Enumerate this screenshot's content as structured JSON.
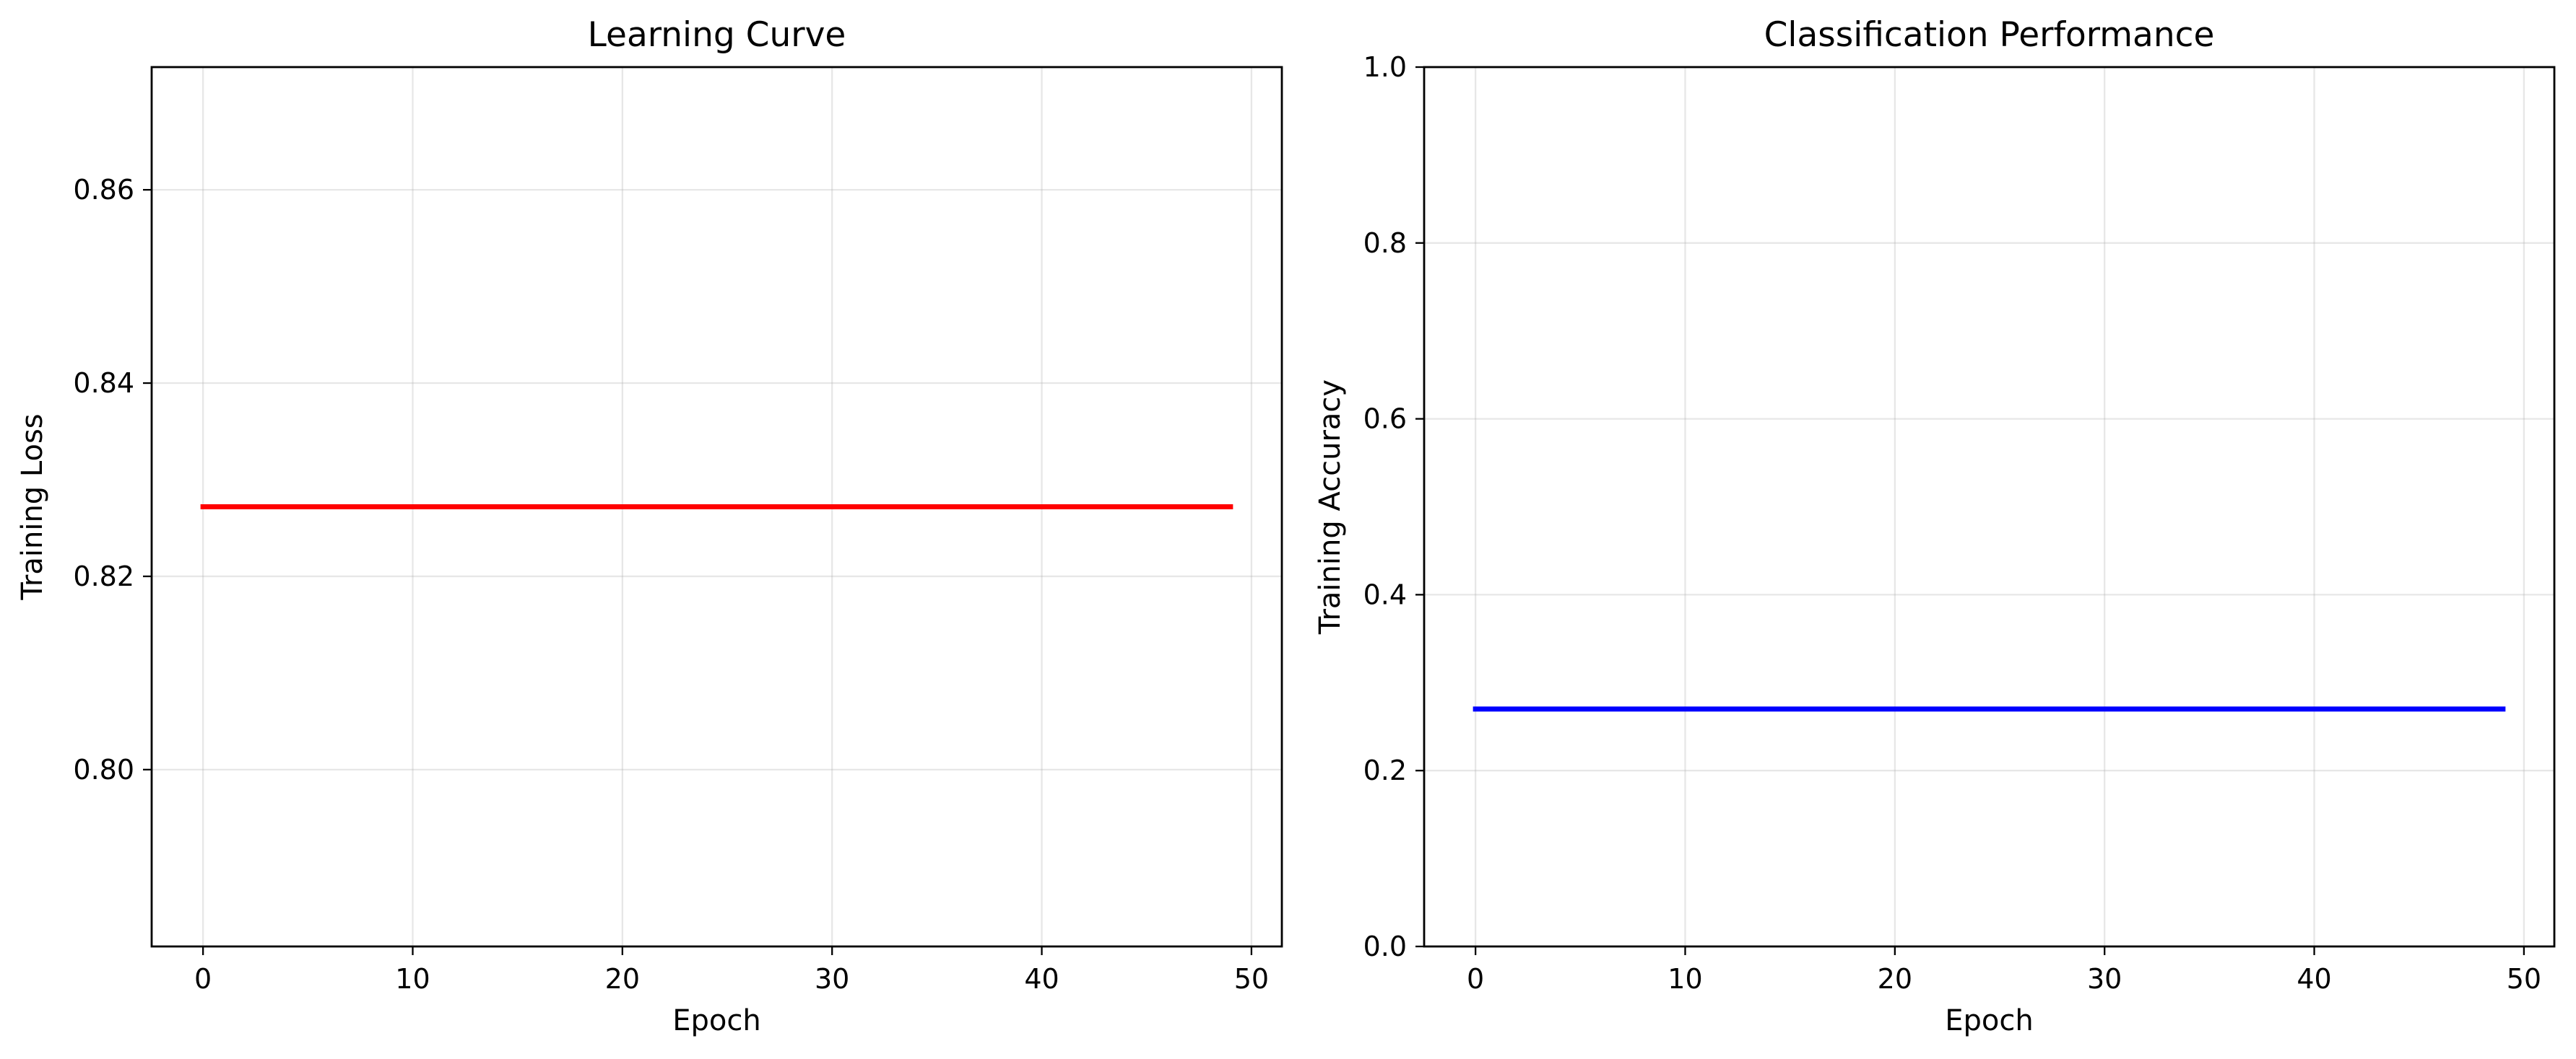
{
  "chart_data": [
    {
      "type": "line",
      "title": "Learning Curve",
      "xlabel": "Epoch",
      "ylabel": "Training Loss",
      "xlim": [
        -2.45,
        51.45
      ],
      "ylim": [
        0.7817,
        0.8727
      ],
      "xticks": [
        0,
        10,
        20,
        30,
        40,
        50
      ],
      "yticks": [
        0.8,
        0.82,
        0.84,
        0.86
      ],
      "ytick_labels": [
        "0.80",
        "0.82",
        "0.84",
        "0.86"
      ],
      "grid": true,
      "series": [
        {
          "color": "#ff0000",
          "x": [
            0,
            49
          ],
          "y": [
            0.8272,
            0.8272
          ]
        }
      ]
    },
    {
      "type": "line",
      "title": "Classification Performance",
      "xlabel": "Epoch",
      "ylabel": "Training Accuracy",
      "xlim": [
        -2.45,
        51.45
      ],
      "ylim": [
        0.0,
        1.0
      ],
      "xticks": [
        0,
        10,
        20,
        30,
        40,
        50
      ],
      "yticks": [
        0.0,
        0.2,
        0.4,
        0.6,
        0.8,
        1.0
      ],
      "ytick_labels": [
        "0.0",
        "0.2",
        "0.4",
        "0.6",
        "0.8",
        "1.0"
      ],
      "grid": true,
      "series": [
        {
          "color": "#0000ff",
          "x": [
            0,
            49
          ],
          "y": [
            0.27,
            0.27
          ]
        }
      ]
    }
  ]
}
